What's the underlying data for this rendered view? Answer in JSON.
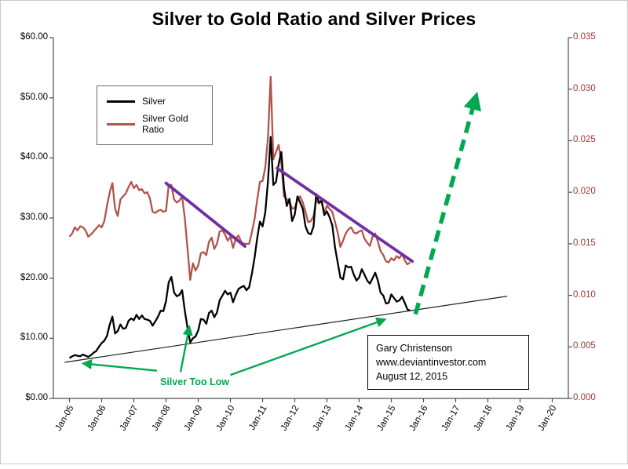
{
  "title": "Silver to Gold Ratio and Silver Prices",
  "colors": {
    "silver_line": "#000000",
    "ratio_line": "#b2534b",
    "right_axis_text": "#9c3a31",
    "trendline_purple": "#7030a0",
    "green": "#00a84f",
    "axis": "#4d4d4d",
    "support_line": "#1a1a1a"
  },
  "legend": {
    "items": [
      {
        "label": "Silver",
        "color": "#000000"
      },
      {
        "label": "Silver Gold Ratio",
        "color": "#b2534b"
      }
    ]
  },
  "annotations": {
    "silver_too_low": "Silver Too Low",
    "source_lines": [
      "Gary Christenson",
      "www.deviantinvestor.com",
      "August 12, 2015"
    ]
  },
  "chart_data": {
    "type": "line",
    "title": "Silver to Gold Ratio and Silver Prices",
    "grid": false,
    "legend_position": "upper-left-inside",
    "x_axis": {
      "tick_years": [
        2005,
        2006,
        2007,
        2008,
        2009,
        2010,
        2011,
        2012,
        2013,
        2014,
        2015,
        2016,
        2017,
        2018,
        2019,
        2020
      ],
      "tick_labels": [
        "Jan-05",
        "Jan-06",
        "Jan-07",
        "Jan-08",
        "Jan-09",
        "Jan-10",
        "Jan-11",
        "Jan-12",
        "Jan-13",
        "Jan-14",
        "Jan-15",
        "Jan-16",
        "Jan-17",
        "Jan-18",
        "Jan-19",
        "Jan-20"
      ]
    },
    "left_axis": {
      "range": [
        0,
        60
      ],
      "tick_values": [
        0,
        10,
        20,
        30,
        40,
        50,
        60
      ],
      "tick_labels": [
        "$0.00",
        "$10.00",
        "$20.00",
        "$30.00",
        "$40.00",
        "$50.00",
        "$60.00"
      ],
      "series": "Silver price (USD)"
    },
    "right_axis": {
      "range": [
        0,
        0.035
      ],
      "tick_values": [
        0,
        0.005,
        0.01,
        0.015,
        0.02,
        0.025,
        0.03,
        0.035
      ],
      "tick_labels": [
        "0.000",
        "0.005",
        "0.010",
        "0.015",
        "0.020",
        "0.025",
        "0.030",
        "0.035"
      ],
      "series": "Silver to Gold ratio"
    },
    "series_x_start_year": 2005,
    "series_x_interval": "monthly (Jan-2005 through Aug-2015)",
    "series": [
      {
        "name": "Silver",
        "axis": "left",
        "color": "#000000",
        "values": [
          6.7,
          7.0,
          7.2,
          7.1,
          7.0,
          7.3,
          7.1,
          6.9,
          7.2,
          7.6,
          7.9,
          8.6,
          9.2,
          9.6,
          10.4,
          12.3,
          13.6,
          10.8,
          11.2,
          12.3,
          11.6,
          11.7,
          12.9,
          13.3,
          13.0,
          13.9,
          13.2,
          13.8,
          13.2,
          13.1,
          12.9,
          12.1,
          12.8,
          13.6,
          14.6,
          14.5,
          16.2,
          19.3,
          20.2,
          17.6,
          17.0,
          17.2,
          18.0,
          14.6,
          11.8,
          9.3,
          10.0,
          10.3,
          11.3,
          13.2,
          13.1,
          12.4,
          14.2,
          14.6,
          13.5,
          14.3,
          16.3,
          17.1,
          17.9,
          17.3,
          17.6,
          16.0,
          17.2,
          18.2,
          18.5,
          18.7,
          18.0,
          18.5,
          20.7,
          23.4,
          26.7,
          29.4,
          28.6,
          30.9,
          36.0,
          43.5,
          35.5,
          36.0,
          39.0,
          41.0,
          35.0,
          32.0,
          33.2,
          29.5,
          30.6,
          33.6,
          32.6,
          31.5,
          28.6,
          27.5,
          27.3,
          28.6,
          34.0,
          32.6,
          32.9,
          30.5,
          31.1,
          30.1,
          28.8,
          25.1,
          22.6,
          20.1,
          19.8,
          22.1,
          21.8,
          21.9,
          20.6,
          19.6,
          20.1,
          21.5,
          20.6,
          19.6,
          19.1,
          20.0,
          20.9,
          19.6,
          17.6,
          17.1,
          15.8,
          15.9,
          17.3,
          16.7,
          16.1,
          16.3,
          16.9,
          15.9,
          14.8,
          14.6
        ]
      },
      {
        "name": "Silver Gold Ratio",
        "axis": "right",
        "color": "#b2534b",
        "values": [
          0.0157,
          0.016,
          0.0166,
          0.0163,
          0.0167,
          0.0166,
          0.0163,
          0.0157,
          0.0159,
          0.0162,
          0.0165,
          0.0168,
          0.0166,
          0.0172,
          0.0187,
          0.02,
          0.0209,
          0.0184,
          0.0177,
          0.0193,
          0.0196,
          0.0199,
          0.0205,
          0.021,
          0.0204,
          0.0207,
          0.0202,
          0.0203,
          0.0199,
          0.02,
          0.0194,
          0.0181,
          0.018,
          0.0182,
          0.0183,
          0.0181,
          0.0182,
          0.0207,
          0.0207,
          0.0193,
          0.019,
          0.0192,
          0.0196,
          0.0175,
          0.0146,
          0.0115,
          0.0131,
          0.0124,
          0.0129,
          0.0141,
          0.0142,
          0.0139,
          0.0152,
          0.0156,
          0.0145,
          0.015,
          0.0162,
          0.0163,
          0.0159,
          0.0153,
          0.0157,
          0.0146,
          0.0155,
          0.0158,
          0.0152,
          0.015,
          0.015,
          0.015,
          0.0161,
          0.0174,
          0.0193,
          0.021,
          0.0211,
          0.0224,
          0.0252,
          0.0312,
          0.0232,
          0.0239,
          0.0246,
          0.0228,
          0.0196,
          0.0193,
          0.0192,
          0.0184,
          0.0185,
          0.0193,
          0.0196,
          0.019,
          0.0181,
          0.0171,
          0.0172,
          0.0177,
          0.0192,
          0.0189,
          0.0191,
          0.018,
          0.0187,
          0.0184,
          0.0181,
          0.0171,
          0.0161,
          0.0147,
          0.0153,
          0.016,
          0.0164,
          0.0166,
          0.0161,
          0.016,
          0.0162,
          0.0163,
          0.0155,
          0.0151,
          0.0148,
          0.0157,
          0.016,
          0.0152,
          0.0143,
          0.0139,
          0.0133,
          0.0132,
          0.0136,
          0.0134,
          0.0138,
          0.0136,
          0.014,
          0.0134,
          0.013,
          0.0132
        ]
      }
    ],
    "overlays": {
      "coord_space": "x = decimal year, y = USD on left axis",
      "support_line": {
        "from": [
          2004.85,
          6.0
        ],
        "to": [
          2018.6,
          17.0
        ]
      },
      "purple_trendlines": [
        {
          "from": [
            2008.0,
            35.8
          ],
          "to": [
            2010.45,
            25.3
          ]
        },
        {
          "from": [
            2011.45,
            38.3
          ],
          "to": [
            2015.65,
            22.8
          ]
        }
      ],
      "green_projection_arrow": {
        "from": [
          2015.75,
          14.0
        ],
        "to": [
          2017.62,
          50.0
        ]
      },
      "green_arrows": [
        {
          "from": [
            2007.72,
            4.6
          ],
          "to": [
            2005.45,
            5.8
          ]
        },
        {
          "from": [
            2008.45,
            4.4
          ],
          "to": [
            2008.72,
            11.8
          ]
        },
        {
          "from": [
            2010.0,
            3.9
          ],
          "to": [
            2014.78,
            13.1
          ]
        }
      ]
    }
  }
}
